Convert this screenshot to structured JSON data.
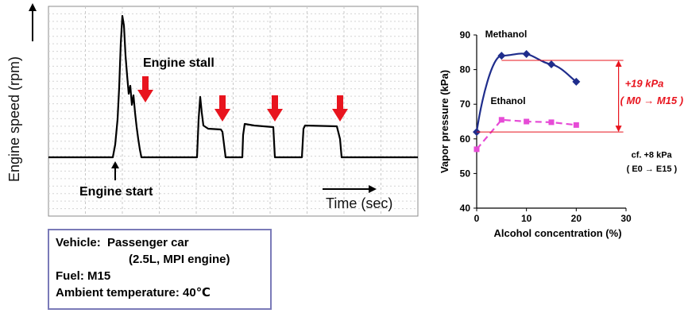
{
  "left_chart": {
    "ylabel": "Engine speed (rpm)",
    "xlabel": "Time (sec)",
    "annotations": {
      "stall": "Engine stall",
      "start": "Engine start"
    }
  },
  "info": {
    "vehicle_label": "Vehicle:",
    "vehicle_value": "Passenger car",
    "vehicle_engine": "(2.5L, MPI engine)",
    "fuel": "Fuel: M15",
    "ambient": "Ambient temperature: 40℃"
  },
  "chart_data": {
    "type": "line",
    "xlabel": "Alcohol concentration (%)",
    "ylabel": "Vapor pressure (kPa)",
    "xlim": [
      0,
      30
    ],
    "ylim": [
      40,
      90
    ],
    "xticks": [
      0,
      10,
      20,
      30
    ],
    "yticks": [
      40,
      50,
      60,
      70,
      80,
      90
    ],
    "grid": false,
    "series": [
      {
        "name": "Methanol",
        "color": "#1f2d8c",
        "marker": "diamond",
        "style": "solid",
        "x": [
          0,
          5,
          10,
          15,
          20
        ],
        "y": [
          62,
          84,
          84.5,
          81.5,
          76.5
        ]
      },
      {
        "name": "Ethanol",
        "color": "#e64bd6",
        "marker": "square",
        "style": "dashed",
        "x": [
          0,
          5,
          10,
          15,
          20
        ],
        "y": [
          57,
          65.5,
          65,
          64.8,
          64
        ]
      }
    ],
    "annotations": {
      "methanol_delta": "+19 kPa",
      "methanol_range": "( M0 → M15 )",
      "ethanol_note": "cf. +8 kPa",
      "ethanol_range": "( E0 → E15 )"
    },
    "colors": {
      "delta": "#e8141e",
      "arrow": "#e8141e"
    }
  }
}
